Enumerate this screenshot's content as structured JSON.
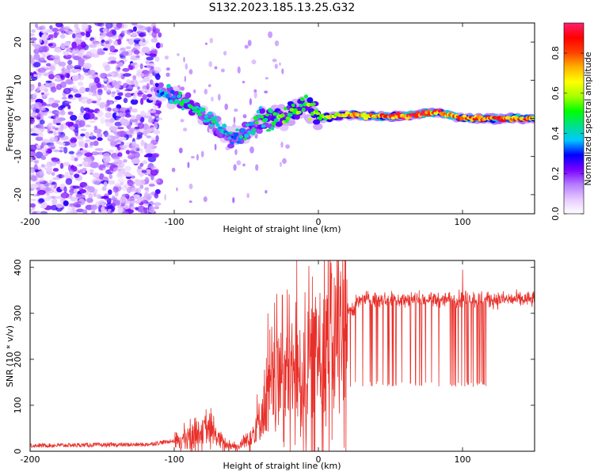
{
  "figure": {
    "title": "S132.2023.185.13.25.G32"
  },
  "chart_data": [
    {
      "type": "heatmap",
      "xlabel": "Height of straight line (km)",
      "ylabel": "Frequency (Hz)",
      "xlim": [
        -200,
        150
      ],
      "ylim": [
        -25,
        25
      ],
      "xticks": [
        "-200",
        "-100",
        "0",
        "100"
      ],
      "yticks": [
        "-20",
        "-10",
        "0",
        "10",
        "20"
      ],
      "colorbar": {
        "label": "Normalized spectral amplitude",
        "range": [
          0,
          0.95
        ],
        "ticks": [
          "0.0",
          "0.2",
          "0.4",
          "0.6",
          "0.8"
        ],
        "colormap": [
          "#ffffff",
          "#e6c8ff",
          "#b47cff",
          "#7a00ff",
          "#0000ff",
          "#00c8ff",
          "#00e08a",
          "#00ff00",
          "#a8ff00",
          "#ffff00",
          "#ffb000",
          "#ff4000",
          "#ff0000",
          "#ff2070"
        ]
      },
      "ridge": [
        {
          "x": -110,
          "y": 7
        },
        {
          "x": -100,
          "y": 5
        },
        {
          "x": -90,
          "y": 4
        },
        {
          "x": -80,
          "y": 1
        },
        {
          "x": -70,
          "y": -2
        },
        {
          "x": -60,
          "y": -5
        },
        {
          "x": -50,
          "y": -4
        },
        {
          "x": -40,
          "y": 0
        },
        {
          "x": -30,
          "y": 0
        },
        {
          "x": -20,
          "y": 1
        },
        {
          "x": -10,
          "y": 4
        },
        {
          "x": 0,
          "y": 0
        },
        {
          "x": 20,
          "y": 1
        },
        {
          "x": 40,
          "y": 0.5
        },
        {
          "x": 60,
          "y": 0.5
        },
        {
          "x": 75,
          "y": 1.5
        },
        {
          "x": 85,
          "y": 1.5
        },
        {
          "x": 100,
          "y": 0
        },
        {
          "x": 120,
          "y": 0
        },
        {
          "x": 150,
          "y": 0
        }
      ],
      "ridge_amplitude": [
        {
          "x": -110,
          "a": 0.35
        },
        {
          "x": -90,
          "a": 0.5
        },
        {
          "x": -60,
          "a": 0.4
        },
        {
          "x": -30,
          "a": 0.55
        },
        {
          "x": 0,
          "a": 0.6
        },
        {
          "x": 30,
          "a": 0.8
        },
        {
          "x": 60,
          "a": 0.9
        },
        {
          "x": 80,
          "a": 0.85
        },
        {
          "x": 100,
          "a": 0.8
        },
        {
          "x": 120,
          "a": 0.85
        },
        {
          "x": 150,
          "a": 0.8
        }
      ],
      "noise_region": {
        "x": [
          -200,
          -110
        ],
        "y": [
          -25,
          25
        ]
      }
    },
    {
      "type": "line",
      "xlabel": "Height of straight line (km)",
      "ylabel": "SNR (10 * v/v)",
      "xlim": [
        -200,
        150
      ],
      "ylim": [
        0,
        415
      ],
      "xticks": [
        "-200",
        "-100",
        "0",
        "100"
      ],
      "yticks": [
        "0",
        "100",
        "200",
        "300",
        "400"
      ],
      "series": [
        {
          "color": "#e8302a",
          "envelope": [
            {
              "x": -200,
              "y": 8
            },
            {
              "x": -120,
              "y": 10
            },
            {
              "x": -100,
              "y": 18
            },
            {
              "x": -85,
              "y": 40
            },
            {
              "x": -75,
              "y": 45
            },
            {
              "x": -65,
              "y": 15
            },
            {
              "x": -55,
              "y": 10
            },
            {
              "x": -45,
              "y": 40
            },
            {
              "x": -38,
              "y": 90
            },
            {
              "x": -30,
              "y": 150
            },
            {
              "x": -20,
              "y": 170
            },
            {
              "x": -10,
              "y": 160
            },
            {
              "x": 0,
              "y": 220
            },
            {
              "x": 10,
              "y": 240
            },
            {
              "x": 20,
              "y": 300
            },
            {
              "x": 30,
              "y": 330
            },
            {
              "x": 60,
              "y": 330
            },
            {
              "x": 100,
              "y": 330
            },
            {
              "x": 150,
              "y": 330
            }
          ],
          "dropouts": {
            "x": [
              20,
              117
            ],
            "y": 140
          },
          "spikes": [
            {
              "x": -25,
              "y": 340
            },
            {
              "x": -15,
              "y": 415
            },
            {
              "x": -35,
              "y": 300
            },
            {
              "x": 5,
              "y": 330
            },
            {
              "x": 100,
              "y": 395
            }
          ]
        }
      ]
    }
  ]
}
